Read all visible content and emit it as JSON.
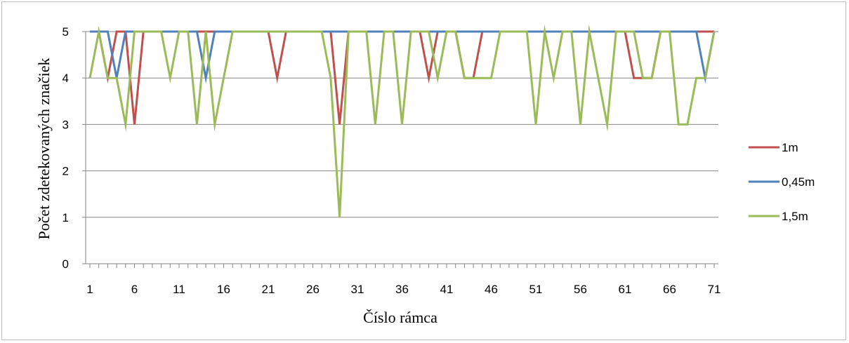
{
  "chart_data": {
    "type": "line",
    "title": "",
    "xlabel": "Číslo rámca",
    "ylabel": "Počet zdetekovaných značiek",
    "ylim": [
      0,
      5
    ],
    "yticks": [
      "0",
      "1",
      "2",
      "3",
      "4",
      "5"
    ],
    "xlim": [
      1,
      71
    ],
    "xtick_labels": [
      "1",
      "6",
      "11",
      "16",
      "21",
      "26",
      "31",
      "36",
      "41",
      "46",
      "51",
      "56",
      "61",
      "66",
      "71"
    ],
    "x": [
      1,
      2,
      3,
      4,
      5,
      6,
      7,
      8,
      9,
      10,
      11,
      12,
      13,
      14,
      15,
      16,
      17,
      18,
      19,
      20,
      21,
      22,
      23,
      24,
      25,
      26,
      27,
      28,
      29,
      30,
      31,
      32,
      33,
      34,
      35,
      36,
      37,
      38,
      39,
      40,
      41,
      42,
      43,
      44,
      45,
      46,
      47,
      48,
      49,
      50,
      51,
      52,
      53,
      54,
      55,
      56,
      57,
      58,
      59,
      60,
      61,
      62,
      63,
      64,
      65,
      66,
      67,
      68,
      69,
      70,
      71
    ],
    "grid": "horizontal",
    "legend_position": "right",
    "series": [
      {
        "name": "1m",
        "color": "#c0504d",
        "values": [
          5,
          5,
          4,
          5,
          5,
          3,
          5,
          5,
          5,
          5,
          5,
          5,
          5,
          5,
          5,
          5,
          5,
          5,
          5,
          5,
          5,
          4,
          5,
          5,
          5,
          5,
          5,
          5,
          3,
          5,
          5,
          5,
          5,
          5,
          5,
          5,
          5,
          5,
          4,
          5,
          5,
          5,
          4,
          4,
          5,
          5,
          5,
          5,
          5,
          5,
          5,
          5,
          5,
          5,
          5,
          5,
          5,
          5,
          5,
          5,
          5,
          4,
          4,
          4,
          5,
          5,
          5,
          5,
          5,
          5,
          5
        ]
      },
      {
        "name": "0,45m",
        "color": "#4f81bd",
        "values": [
          5,
          5,
          5,
          4,
          5,
          5,
          5,
          5,
          5,
          5,
          5,
          5,
          5,
          4,
          5,
          5,
          5,
          5,
          5,
          5,
          5,
          5,
          5,
          5,
          5,
          5,
          5,
          5,
          5,
          5,
          5,
          5,
          5,
          5,
          5,
          5,
          5,
          5,
          5,
          5,
          5,
          5,
          5,
          5,
          5,
          5,
          5,
          5,
          5,
          5,
          5,
          5,
          5,
          5,
          5,
          5,
          5,
          5,
          5,
          5,
          5,
          5,
          5,
          5,
          5,
          5,
          5,
          5,
          5,
          4,
          5
        ]
      },
      {
        "name": "1,5m",
        "color": "#9bbb59",
        "values": [
          4,
          5,
          4,
          4,
          3,
          5,
          5,
          5,
          5,
          4,
          5,
          5,
          3,
          5,
          3,
          4,
          5,
          5,
          5,
          5,
          5,
          5,
          5,
          5,
          5,
          5,
          5,
          4,
          1,
          5,
          5,
          5,
          3,
          5,
          5,
          3,
          5,
          5,
          5,
          4,
          5,
          5,
          4,
          4,
          4,
          4,
          5,
          5,
          5,
          5,
          3,
          5,
          4,
          5,
          5,
          3,
          5,
          4,
          3,
          5,
          5,
          5,
          4,
          4,
          5,
          5,
          3,
          3,
          4,
          4,
          5
        ]
      }
    ]
  }
}
